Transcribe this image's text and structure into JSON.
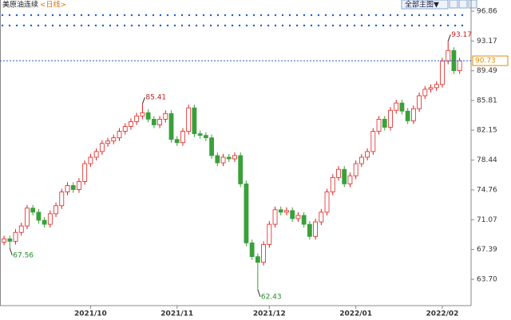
{
  "chart_data": {
    "type": "candlestick",
    "title": "美原油连续",
    "subtitle": "<日线>",
    "toolbar_button": "全部主图▼",
    "rise_color": "#e02020",
    "fall_color": "#3aa03a",
    "open": [
      68.3,
      68.7,
      68.4,
      69.5,
      70.3,
      72.5,
      72.0,
      71.0,
      70.5,
      71.8,
      72.8,
      74.5,
      75.3,
      74.8,
      75.8,
      78.0,
      78.8,
      79.5,
      80.5,
      80.8,
      81.2,
      82.0,
      82.6,
      83.2,
      83.9,
      84.3,
      83.5,
      82.8,
      83.5,
      84.2,
      81.0,
      80.6,
      82.0,
      84.9,
      81.7,
      81.5,
      81.2,
      79.0,
      78.1,
      78.8,
      78.6,
      79.0,
      75.5,
      68.2,
      66.5,
      65.8,
      68.0,
      70.5,
      72.3,
      72.0,
      72.2,
      71.2,
      71.6,
      70.5,
      69.0,
      70.8,
      72.0,
      74.5,
      76.3,
      77.3,
      75.5,
      76.5,
      78.0,
      78.8,
      79.5,
      82.0,
      83.5,
      82.5,
      84.6,
      85.5,
      84.5,
      83.3,
      84.8,
      86.4,
      87.2,
      87.4,
      87.8,
      90.7,
      92.0,
      89.5
    ],
    "high": [
      69.1,
      69.1,
      69.9,
      70.7,
      72.9,
      72.9,
      72.4,
      71.4,
      72.2,
      73.2,
      74.9,
      75.7,
      75.7,
      76.2,
      78.4,
      79.2,
      79.9,
      80.9,
      81.2,
      81.6,
      82.4,
      83.0,
      83.6,
      84.3,
      85.41,
      84.7,
      83.9,
      83.9,
      84.6,
      84.6,
      81.4,
      82.4,
      85.3,
      85.3,
      82.1,
      81.9,
      81.6,
      79.4,
      79.2,
      79.2,
      79.4,
      79.4,
      75.9,
      68.6,
      66.9,
      68.4,
      70.9,
      72.7,
      72.7,
      72.6,
      72.6,
      72.0,
      72.0,
      70.9,
      71.2,
      72.4,
      74.9,
      76.7,
      77.7,
      77.7,
      76.9,
      78.4,
      79.2,
      79.9,
      82.4,
      83.9,
      83.9,
      85.0,
      85.9,
      85.9,
      84.9,
      85.2,
      86.8,
      87.6,
      87.8,
      88.2,
      91.1,
      93.17,
      92.4,
      91.1
    ],
    "low": [
      67.9,
      67.56,
      68.0,
      69.1,
      69.9,
      71.6,
      70.6,
      70.1,
      70.1,
      71.4,
      72.4,
      74.1,
      74.4,
      74.4,
      75.4,
      77.6,
      78.4,
      79.1,
      80.1,
      80.4,
      80.8,
      81.6,
      82.2,
      82.8,
      83.5,
      83.1,
      82.4,
      82.4,
      83.1,
      80.6,
      80.2,
      80.2,
      81.6,
      81.3,
      81.1,
      80.8,
      78.6,
      77.7,
      77.7,
      78.2,
      78.2,
      75.1,
      67.8,
      66.1,
      62.43,
      65.4,
      67.6,
      70.1,
      71.6,
      71.6,
      70.8,
      70.8,
      70.1,
      68.6,
      68.6,
      70.4,
      71.6,
      74.1,
      75.9,
      75.1,
      75.1,
      76.1,
      77.6,
      78.4,
      79.1,
      81.6,
      82.1,
      82.1,
      84.2,
      84.1,
      82.9,
      82.9,
      84.4,
      86.0,
      86.8,
      87.0,
      87.4,
      90.3,
      89.1,
      89.1
    ],
    "close": [
      68.7,
      68.4,
      69.5,
      70.3,
      72.5,
      72.0,
      71.0,
      70.5,
      71.8,
      72.8,
      74.5,
      75.3,
      74.8,
      75.8,
      78.0,
      78.8,
      79.5,
      80.5,
      80.8,
      81.2,
      82.0,
      82.6,
      83.2,
      83.9,
      84.3,
      83.5,
      82.8,
      83.5,
      84.2,
      81.0,
      80.6,
      82.0,
      84.9,
      81.7,
      81.5,
      81.2,
      79.0,
      78.1,
      78.8,
      78.6,
      79.0,
      75.5,
      68.2,
      66.5,
      65.8,
      68.0,
      70.5,
      72.3,
      72.0,
      72.2,
      71.2,
      71.6,
      70.5,
      69.0,
      70.8,
      72.0,
      74.5,
      76.3,
      77.3,
      75.5,
      76.5,
      78.0,
      78.8,
      79.5,
      82.0,
      83.5,
      82.5,
      84.6,
      85.5,
      84.5,
      83.3,
      84.8,
      86.4,
      87.2,
      87.4,
      87.8,
      90.7,
      92.0,
      89.5,
      90.73
    ],
    "annotations": [
      85.41,
      67.56,
      62.43,
      93.17
    ],
    "last_price": 90.73,
    "xlim": [
      -0.7,
      79.6
    ],
    "xticks": [
      {
        "value": 15,
        "label": "2021/10"
      },
      {
        "value": 30,
        "label": "2021/11"
      },
      {
        "value": 46,
        "label": "2021/12"
      },
      {
        "value": 61,
        "label": "2022/01"
      },
      {
        "value": 76,
        "label": "2022/02"
      }
    ],
    "ylim": [
      60.44,
      97.85
    ],
    "yticks": [
      96.86,
      93.17,
      89.49,
      85.81,
      82.15,
      78.44,
      74.76,
      71.07,
      67.39,
      {
        "value": 63.7,
        "label": "63.70"
      }
    ]
  }
}
